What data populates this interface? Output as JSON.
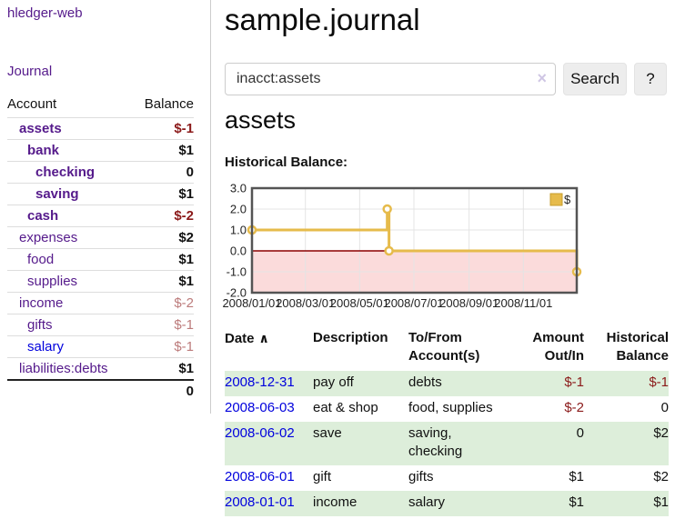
{
  "sidebar": {
    "app_title": "hledger-web",
    "journal_link": "Journal",
    "accounts": {
      "header_account": "Account",
      "header_balance": "Balance",
      "rows": [
        {
          "name": "assets",
          "balance": "$-1"
        },
        {
          "name": "bank",
          "balance": "$1"
        },
        {
          "name": "checking",
          "balance": "0"
        },
        {
          "name": "saving",
          "balance": "$1"
        },
        {
          "name": "cash",
          "balance": "$-2"
        },
        {
          "name": "expenses",
          "balance": "$2"
        },
        {
          "name": "food",
          "balance": "$1"
        },
        {
          "name": "supplies",
          "balance": "$1"
        },
        {
          "name": "income",
          "balance": "$-2"
        },
        {
          "name": "gifts",
          "balance": "$-1"
        },
        {
          "name": "salary",
          "balance": "$-1"
        },
        {
          "name": "liabilities:debts",
          "balance": "$1"
        }
      ],
      "total": "0"
    }
  },
  "main": {
    "title": "sample.journal",
    "search": {
      "value": "inacct:assets",
      "clear_icon": "×",
      "button_label": "Search",
      "help_label": "?"
    },
    "account_heading": "assets",
    "chart_title": "Historical Balance:"
  },
  "table": {
    "headers": {
      "date": "Date",
      "sort_icon": "∧",
      "description": "Description",
      "account": "To/From\nAccount(s)",
      "amount": "Amount\nOut/In",
      "balance": "Historical\nBalance"
    },
    "rows": [
      {
        "date": "2008-12-31",
        "description": "pay off",
        "account": "debts",
        "amount": "$-1",
        "balance": "$-1"
      },
      {
        "date": "2008-06-03",
        "description": "eat & shop",
        "account": "food, supplies",
        "amount": "$-2",
        "balance": "0"
      },
      {
        "date": "2008-06-02",
        "description": "save",
        "account": "saving,\nchecking",
        "amount": "0",
        "balance": "$2"
      },
      {
        "date": "2008-06-01",
        "description": "gift",
        "account": "gifts",
        "amount": "$1",
        "balance": "$2"
      },
      {
        "date": "2008-01-01",
        "description": "income",
        "account": "salary",
        "amount": "$1",
        "balance": "$1"
      }
    ]
  },
  "chart_data": {
    "type": "line",
    "title": "Historical Balance",
    "step": true,
    "xlim": [
      0,
      365
    ],
    "ylim": [
      -2,
      3
    ],
    "x_ticks": [
      {
        "value": 0,
        "label": "2008/01/01"
      },
      {
        "value": 60,
        "label": "2008/03/01"
      },
      {
        "value": 121,
        "label": "2008/05/01"
      },
      {
        "value": 182,
        "label": "2008/07/01"
      },
      {
        "value": 244,
        "label": "2008/09/01"
      },
      {
        "value": 305,
        "label": "2008/11/01"
      }
    ],
    "y_ticks": [
      {
        "value": 3,
        "label": "3.0"
      },
      {
        "value": 2,
        "label": "2.0"
      },
      {
        "value": 1,
        "label": "1.0"
      },
      {
        "value": 0,
        "label": "0.0"
      },
      {
        "value": -1,
        "label": "-1.0"
      },
      {
        "value": -2,
        "label": "-2.0"
      }
    ],
    "series": [
      {
        "name": "$",
        "color": "#E6BB4B",
        "points": [
          {
            "date": "2008-01-01",
            "x": 0,
            "y": 1
          },
          {
            "date": "2008-06-01",
            "x": 152,
            "y": 2
          },
          {
            "date": "2008-06-03",
            "x": 154,
            "y": 0
          },
          {
            "date": "2008-12-31",
            "x": 365,
            "y": -1
          }
        ]
      }
    ],
    "legend": {
      "label": "$",
      "position": "top-right"
    },
    "grid": true,
    "negative_region_fill": "#FBDBDB",
    "zero_line_color": "#8B0000",
    "border_color": "#545454",
    "grid_color": "#E4E4E4"
  },
  "palette": {
    "link_purple": "#551A8B",
    "link_blue": "#0000DD",
    "negative_dark": "#8B1A1A",
    "negative_soft": "#BC7B7B",
    "row_green": "#DDEEDA",
    "chart_gold": "#E6BB4B"
  }
}
